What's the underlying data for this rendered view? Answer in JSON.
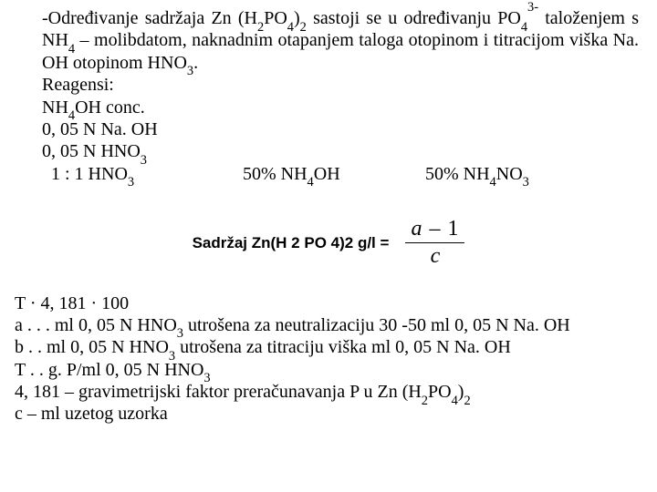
{
  "top": {
    "line1_parts": [
      "-Određivanje sadržaja Zn (H",
      "2",
      "PO",
      "4",
      ")",
      "2",
      " sastoji se u određivanju PO",
      "4",
      "3-"
    ],
    "line2": "taloženjem s NH",
    "line2_sub": "4",
    "line2_rest": " – molibdatom, naknadnim otapanjem taloga",
    "line3_a": "otopinom i titracijom viška Na. OH otopinom HNO",
    "line3_sub": "3",
    "line3_end": ".",
    "reagents_label": "Reagensi:",
    "r1_a": "NH",
    "r1_sub": "4",
    "r1_b": "OH conc.",
    "r2": " 0, 05 N Na. OH",
    "r3_a": " 0, 05 N HNO",
    "r3_sub": "3",
    "r4_a": " 1 : 1 HNO",
    "r4_sub": "3",
    "r4_mid_a": "50% NH",
    "r4_mid_sub": "4",
    "r4_mid_b": "OH",
    "r4_right_a": "50% NH",
    "r4_right_sub": "4",
    "r4_right_b": "NO",
    "r4_right_sub2": "3"
  },
  "formula": {
    "label": "Sadržaj Zn(H 2 PO 4)2 g/l =",
    "num_a": "a",
    "num_dash": " – ",
    "num_b": "1",
    "den": "c"
  },
  "bottom": {
    "l1": " T · 4, 181 · 100",
    "l2_a": "a . . . ml 0, 05 N HNO",
    "l2_sub": "3",
    "l2_b": " utrošena za neutralizaciju 30 -50 ml 0, 05 N Na. OH",
    "l3_a": "b . .  ml 0, 05 N HNO",
    "l3_sub": "3",
    "l3_b": " utrošena za titraciju viška ml 0, 05 N Na. OH",
    "l4_a": "T . .  g. P/ml 0, 05 N HNO",
    "l4_sub": "3",
    "l5_a": "4, 181 – gravimetrijski faktor preračunavanja P u Zn (H",
    "l5_s1": "2",
    "l5_b": "PO",
    "l5_s2": "4",
    "l5_c": ")",
    "l5_s3": "2",
    "l6": "c – ml uzetog uzorka"
  }
}
